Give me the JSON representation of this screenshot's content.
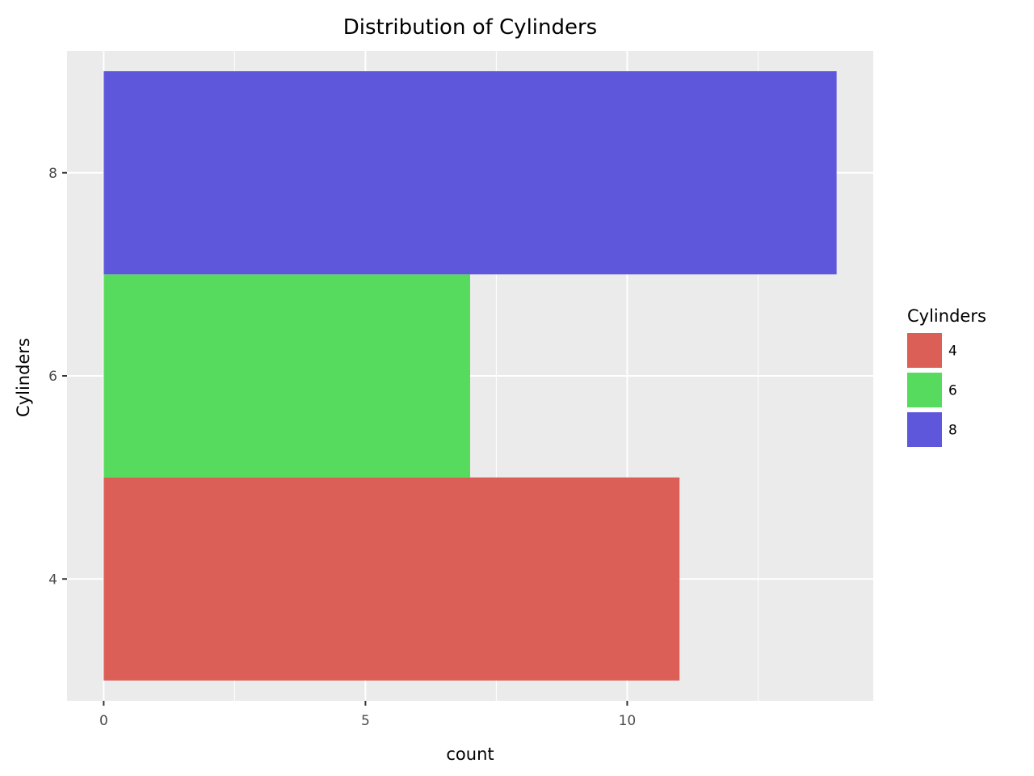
{
  "chart_data": {
    "type": "bar",
    "orientation": "horizontal",
    "title": "Distribution of Cylinders",
    "xlabel": "count",
    "ylabel": "Cylinders",
    "categories": [
      "4",
      "6",
      "8"
    ],
    "values": [
      11,
      7,
      14
    ],
    "colors": [
      "#db5f57",
      "#57db5f",
      "#5f57db"
    ],
    "xlim": [
      -0.7,
      14.7
    ],
    "xticks": [
      0,
      5,
      10
    ],
    "yticks": [
      "4",
      "6",
      "8"
    ],
    "grid": true,
    "panel_background": "#ebebeb",
    "legend": {
      "title": "Cylinders",
      "placement": "right",
      "entries": [
        "4",
        "6",
        "8"
      ]
    }
  }
}
